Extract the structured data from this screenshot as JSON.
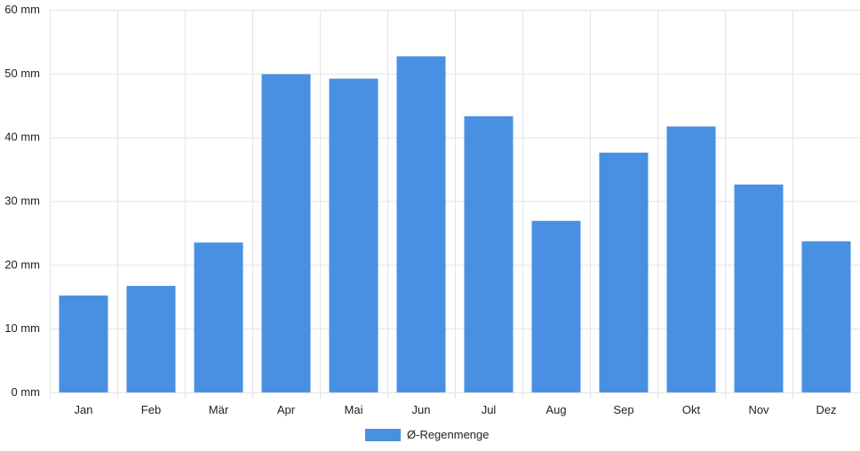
{
  "chart_data": {
    "type": "bar",
    "categories": [
      "Jan",
      "Feb",
      "Mär",
      "Apr",
      "Mai",
      "Jun",
      "Jul",
      "Aug",
      "Sep",
      "Okt",
      "Nov",
      "Dez"
    ],
    "series": [
      {
        "name": "Ø-Regenmenge",
        "values": [
          15.2,
          16.7,
          23.5,
          49.9,
          49.2,
          52.7,
          43.3,
          26.9,
          37.6,
          41.7,
          32.6,
          23.7
        ],
        "color": "#4A90E2"
      }
    ],
    "ylim": [
      0,
      60
    ],
    "yticks": [
      0,
      10,
      20,
      30,
      40,
      50,
      60
    ],
    "ytick_labels": [
      "0 mm",
      "10 mm",
      "20 mm",
      "30 mm",
      "40 mm",
      "50 mm",
      "60 mm"
    ],
    "grid": true,
    "legend_position": "bottom-center"
  }
}
